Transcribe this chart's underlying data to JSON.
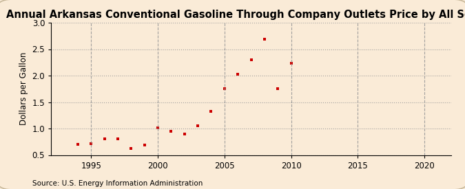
{
  "title": "Annual Arkansas Conventional Gasoline Through Company Outlets Price by All Sellers",
  "ylabel": "Dollars per Gallon",
  "source": "Source: U.S. Energy Information Administration",
  "years": [
    1994,
    1995,
    1996,
    1997,
    1998,
    1999,
    2000,
    2001,
    2002,
    2003,
    2004,
    2005,
    2006,
    2007,
    2008,
    2009,
    2010
  ],
  "values": [
    0.7,
    0.72,
    0.81,
    0.8,
    0.62,
    0.69,
    1.01,
    0.95,
    0.89,
    1.05,
    1.33,
    1.75,
    2.03,
    2.3,
    2.69,
    1.75,
    2.23
  ],
  "marker_color": "#cc0000",
  "background_color": "#faebd7",
  "grid_color": "#999999",
  "xlim": [
    1992,
    2022
  ],
  "ylim": [
    0.5,
    3.0
  ],
  "xticks": [
    1995,
    2000,
    2005,
    2010,
    2015,
    2020
  ],
  "yticks": [
    0.5,
    1.0,
    1.5,
    2.0,
    2.5,
    3.0
  ],
  "title_fontsize": 10.5,
  "label_fontsize": 8.5,
  "tick_fontsize": 8.5,
  "source_fontsize": 7.5
}
